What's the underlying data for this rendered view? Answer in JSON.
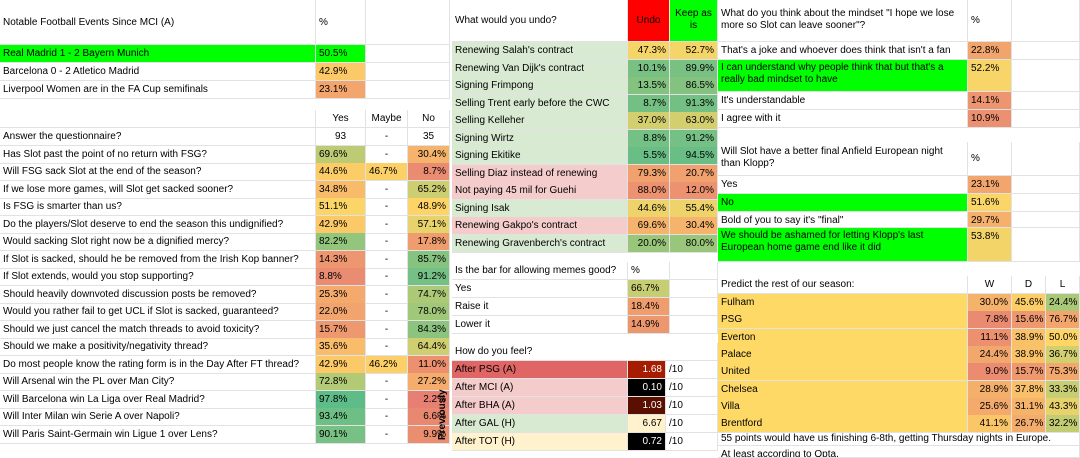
{
  "notable": {
    "header": {
      "title": "Notable Football Events Since MCI (A)",
      "pct": "%"
    },
    "rows": [
      {
        "label": "Real Madrid 1 - 2 Bayern Munich",
        "pct": "50.5%"
      },
      {
        "label": "Barcelona 0 - 2 Atletico Madrid",
        "pct": "42.9%"
      },
      {
        "label": "Liverpool Women are in the FA Cup semifinals",
        "pct": "23.1%"
      }
    ]
  },
  "survey": {
    "headers": {
      "yes": "Yes",
      "maybe": "Maybe",
      "no": "No"
    },
    "rows": [
      {
        "q": "Answer the questionnaire?",
        "yes": "93",
        "maybe": "-",
        "no": "35"
      },
      {
        "q": "Has Slot past the point of no return with FSG?",
        "yes": "69.6%",
        "maybe": "-",
        "no": "30.4%"
      },
      {
        "q": "Will FSG sack Slot at the end of the season?",
        "yes": "44.6%",
        "maybe": "46.7%",
        "no": "8.7%"
      },
      {
        "q": "If we lose more games, will Slot get sacked sooner?",
        "yes": "34.8%",
        "maybe": "-",
        "no": "65.2%"
      },
      {
        "q": "Is FSG is smarter than us?",
        "yes": "51.1%",
        "maybe": "-",
        "no": "48.9%"
      },
      {
        "q": "Do the players/Slot deserve to end the season this undignified?",
        "yes": "42.9%",
        "maybe": "-",
        "no": "57.1%"
      },
      {
        "q": "Would sacking Slot right now be a dignified mercy?",
        "yes": "82.2%",
        "maybe": "-",
        "no": "17.8%"
      },
      {
        "q": "If Slot is sacked, should he be removed from the Irish Kop banner?",
        "yes": "14.3%",
        "maybe": "-",
        "no": "85.7%"
      },
      {
        "q": "If Slot extends, would you stop supporting?",
        "yes": "8.8%",
        "maybe": "-",
        "no": "91.2%"
      },
      {
        "q": "Should heavily downvoted discussion posts be removed?",
        "yes": "25.3%",
        "maybe": "-",
        "no": "74.7%"
      },
      {
        "q": "Would you rather fail to get UCL if Slot is sacked, guaranteed?",
        "yes": "22.0%",
        "maybe": "-",
        "no": "78.0%"
      },
      {
        "q": "Should we just cancel the match threads to avoid toxicity?",
        "yes": "15.7%",
        "maybe": "-",
        "no": "84.3%"
      },
      {
        "q": "Should we make a positivity/negativity thread?",
        "yes": "35.6%",
        "maybe": "-",
        "no": "64.4%"
      },
      {
        "q": "Do most people know the rating form is in the Day After FT thread?",
        "yes": "42.9%",
        "maybe": "46.2%",
        "no": "11.0%"
      },
      {
        "q": "Will Arsenal win the PL over Man City?",
        "yes": "72.8%",
        "maybe": "-",
        "no": "27.2%"
      },
      {
        "q": "Will Barcelona win La Liga over Real Madrid?",
        "yes": "97.8%",
        "maybe": "-",
        "no": "2.2%"
      },
      {
        "q": "Will Inter Milan win Serie A over Napoli?",
        "yes": "93.4%",
        "maybe": "-",
        "no": "6.6%"
      },
      {
        "q": "Will Paris Saint-Germain win Ligue 1 over Lens?",
        "yes": "90.1%",
        "maybe": "-",
        "no": "9.9%"
      }
    ]
  },
  "undo": {
    "header": {
      "title": "What would you undo?",
      "undo": "Undo",
      "keep": "Keep as is"
    },
    "rows": [
      {
        "label": "Renewing Salah's contract",
        "undo": "47.3%",
        "keep": "52.7%"
      },
      {
        "label": "Renewing Van Dijk's contract",
        "undo": "10.1%",
        "keep": "89.9%"
      },
      {
        "label": "Signing Frimpong",
        "undo": "13.5%",
        "keep": "86.5%"
      },
      {
        "label": "Selling Trent early before the CWC",
        "undo": "8.7%",
        "keep": "91.3%"
      },
      {
        "label": "Selling Kelleher",
        "undo": "37.0%",
        "keep": "63.0%"
      },
      {
        "label": "Signing Wirtz",
        "undo": "8.8%",
        "keep": "91.2%"
      },
      {
        "label": "Signing Ekitike",
        "undo": "5.5%",
        "keep": "94.5%"
      },
      {
        "label": "Selling Diaz instead of renewing",
        "undo": "79.3%",
        "keep": "20.7%"
      },
      {
        "label": "Not paying 45 mil for Guehi",
        "undo": "88.0%",
        "keep": "12.0%"
      },
      {
        "label": "Signing Isak",
        "undo": "44.6%",
        "keep": "55.4%"
      },
      {
        "label": "Renewing Gakpo's contract",
        "undo": "69.6%",
        "keep": "30.4%"
      },
      {
        "label": "Renewing Gravenberch's contract",
        "undo": "20.0%",
        "keep": "80.0%"
      }
    ]
  },
  "memes": {
    "header": {
      "title": "Is the bar for allowing memes good?",
      "pct": "%"
    },
    "rows": [
      {
        "label": "Yes",
        "pct": "66.7%"
      },
      {
        "label": "Raise it",
        "pct": "18.4%"
      },
      {
        "label": "Lower it",
        "pct": "14.9%"
      }
    ]
  },
  "feel": {
    "title": "How do you feel?",
    "vertical_label": "Previously",
    "suffix": "/10",
    "rows": [
      {
        "label": "After PSG (A)",
        "score": "1.68"
      },
      {
        "label": "After MCI (A)",
        "score": "0.10"
      },
      {
        "label": "After BHA (A)",
        "score": "1.03"
      },
      {
        "label": "After GAL (H)",
        "score": "6.67"
      },
      {
        "label": "After TOT (H)",
        "score": "0.72"
      }
    ]
  },
  "mindset": {
    "header": {
      "title": "What do you think about the mindset \"I hope we lose more so Slot can leave sooner\"?",
      "pct": "%"
    },
    "rows": [
      {
        "label": "That's a joke and whoever does think that isn't a fan",
        "pct": "22.8%"
      },
      {
        "label": "I can understand why people think that but that's a really bad mindset to have",
        "pct": "52.2%"
      },
      {
        "label": "It's understandable",
        "pct": "14.1%"
      },
      {
        "label": "I agree with it",
        "pct": "10.9%"
      }
    ]
  },
  "anfield": {
    "header": {
      "title": "Will Slot have a better final Anfield European night than Klopp?",
      "pct": "%"
    },
    "rows": [
      {
        "label": "Yes",
        "pct": "23.1%"
      },
      {
        "label": "No",
        "pct": "51.6%"
      },
      {
        "label": "Bold of you to say it's \"final\"",
        "pct": "29.7%"
      },
      {
        "label": "We should be ashamed for letting Klopp's last European home game end like it did",
        "pct": "53.8%"
      }
    ]
  },
  "predict": {
    "header": {
      "title": "Predict the rest of our season:",
      "w": "W",
      "d": "D",
      "l": "L"
    },
    "rows": [
      {
        "team": "Fulham",
        "w": "30.0%",
        "d": "45.6%",
        "l": "24.4%"
      },
      {
        "team": "PSG",
        "w": "7.8%",
        "d": "15.6%",
        "l": "76.7%"
      },
      {
        "team": "Everton",
        "w": "11.1%",
        "d": "38.9%",
        "l": "50.0%"
      },
      {
        "team": "Palace",
        "w": "24.4%",
        "d": "38.9%",
        "l": "36.7%"
      },
      {
        "team": "United",
        "w": "9.0%",
        "d": "15.7%",
        "l": "75.3%"
      },
      {
        "team": "Chelsea",
        "w": "28.9%",
        "d": "37.8%",
        "l": "33.3%"
      },
      {
        "team": "Villa",
        "w": "25.6%",
        "d": "31.1%",
        "l": "43.3%"
      },
      {
        "team": "Brentford",
        "w": "41.1%",
        "d": "26.7%",
        "l": "32.2%"
      }
    ],
    "footnote1": "55 points would have us finishing 6-8th, getting Thursday nights in Europe.",
    "footnote2": "At least according to Opta."
  },
  "colors": {
    "green": "#00ff00",
    "red": "#ff0000",
    "black": "#000000",
    "panel_green": "#d9ead3",
    "panel_pink": "#f4cccc",
    "panel_yellow": "#fff2cc",
    "predict_team": "#ffd966"
  }
}
